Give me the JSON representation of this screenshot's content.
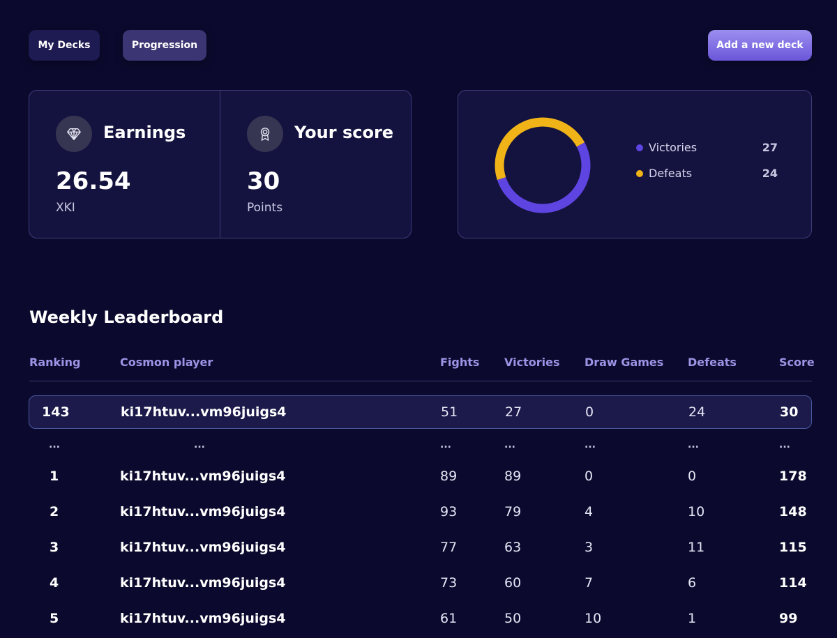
{
  "toolbar": {
    "my_decks": "My Decks",
    "progression": "Progression",
    "add_deck": "Add a new deck"
  },
  "stats": {
    "earnings": {
      "title": "Earnings",
      "value": "26.54",
      "unit": "XKI",
      "icon": "diamond-icon"
    },
    "score": {
      "title": "Your score",
      "value": "30",
      "unit": "Points",
      "icon": "medal-icon"
    }
  },
  "chart_data": {
    "type": "pie",
    "style": "donut",
    "categories": [
      "Victories",
      "Defeats"
    ],
    "values": [
      27,
      24
    ],
    "colors": [
      "#5e44e0",
      "#f0b418"
    ],
    "legend": "right"
  },
  "leaderboard": {
    "title": "Weekly Leaderboard",
    "columns": [
      "Ranking",
      "Cosmon player",
      "Fights",
      "Victories",
      "Draw Games",
      "Defeats",
      "Score"
    ],
    "current": {
      "rank": "143",
      "player": "ki17htuv...vm96juigs4",
      "fights": "51",
      "victories": "27",
      "draws": "0",
      "defeats": "24",
      "score": "30"
    },
    "ellipsis": "...",
    "rows": [
      {
        "rank": "1",
        "player": "ki17htuv...vm96juigs4",
        "fights": "89",
        "victories": "89",
        "draws": "0",
        "defeats": "0",
        "score": "178"
      },
      {
        "rank": "2",
        "player": "ki17htuv...vm96juigs4",
        "fights": "93",
        "victories": "79",
        "draws": "4",
        "defeats": "10",
        "score": "148"
      },
      {
        "rank": "3",
        "player": "ki17htuv...vm96juigs4",
        "fights": "77",
        "victories": "63",
        "draws": "3",
        "defeats": "11",
        "score": "115"
      },
      {
        "rank": "4",
        "player": "ki17htuv...vm96juigs4",
        "fights": "73",
        "victories": "60",
        "draws": "7",
        "defeats": "6",
        "score": "114"
      },
      {
        "rank": "5",
        "player": "ki17htuv...vm96juigs4",
        "fights": "61",
        "victories": "50",
        "draws": "10",
        "defeats": "1",
        "score": "99"
      }
    ]
  }
}
